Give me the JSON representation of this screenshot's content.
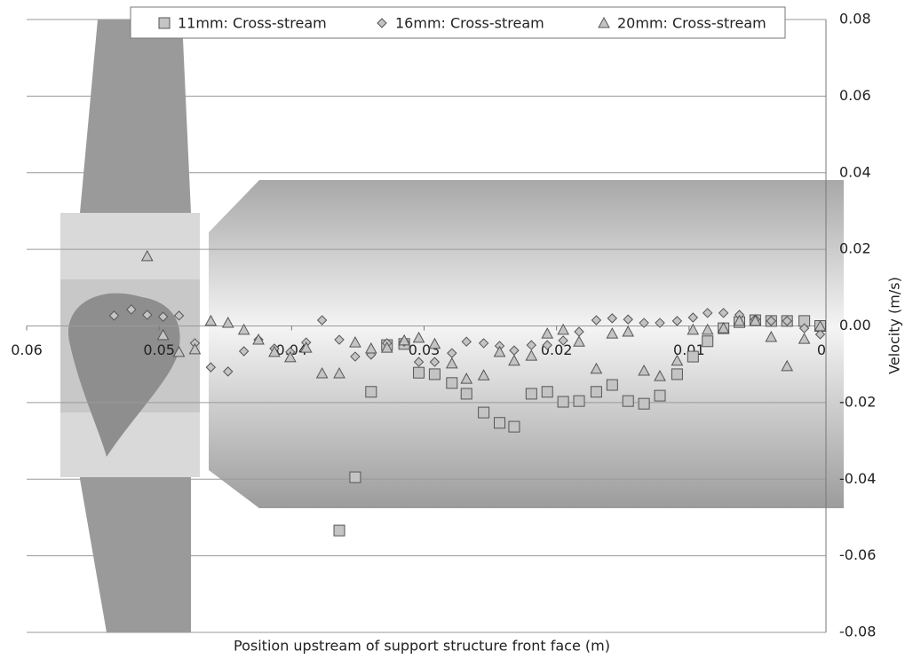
{
  "chart_data": {
    "type": "scatter",
    "x_label": "Position upstream of support structure front face (m)",
    "y_label": "Velocity (m/s)",
    "xlim": [
      0.06,
      0
    ],
    "xticks": [
      0.06,
      0.05,
      0.04,
      0.03,
      0.02,
      0.01,
      0
    ],
    "ylim": [
      -0.08,
      0.08
    ],
    "yticks": [
      0.08,
      0.06,
      0.04,
      0.02,
      {
        "value": 0,
        "label": "0.00"
      },
      -0.02,
      -0.04,
      -0.06,
      -0.08
    ],
    "grid": true,
    "legend": "top",
    "series": [
      {
        "name": "11mm: Cross-stream",
        "marker": "square",
        "color": "#c4c4c4",
        "x": [
          0.0364,
          0.0352,
          0.034,
          0.0328,
          0.0315,
          0.0304,
          0.0292,
          0.0279,
          0.0268,
          0.0255,
          0.0243,
          0.0232,
          0.0219,
          0.0207,
          0.0195,
          0.0183,
          0.017,
          0.0158,
          0.0146,
          0.0134,
          0.0122,
          0.0109,
          0.0097,
          0.0086,
          0.0074,
          0.0062,
          0.005,
          0.0038,
          0.0026,
          0.0013,
          0.0001
        ],
        "values": [
          -0.0534,
          -0.0395,
          -0.0172,
          -0.005,
          -0.0047,
          -0.0122,
          -0.0126,
          -0.0149,
          -0.0177,
          -0.0226,
          -0.0253,
          -0.0263,
          -0.0177,
          -0.0172,
          -0.0198,
          -0.0196,
          -0.0172,
          -0.0154,
          -0.0196,
          -0.0203,
          -0.0182,
          -0.0126,
          -0.008,
          -0.004,
          -0.0006,
          0.001,
          0.0015,
          0.0013,
          0.0013,
          0.0013,
          0
        ]
      },
      {
        "name": "16mm: Cross-stream",
        "marker": "diamond",
        "color": "#c4c4c4",
        "x": [
          0.0534,
          0.0521,
          0.0509,
          0.0497,
          0.0485,
          0.0473,
          0.0461,
          0.0448,
          0.0436,
          0.0425,
          0.0413,
          0.0401,
          0.0389,
          0.0377,
          0.0364,
          0.0352,
          0.034,
          0.0328,
          0.0315,
          0.0304,
          0.0292,
          0.0279,
          0.0268,
          0.0255,
          0.0243,
          0.0232,
          0.0219,
          0.0207,
          0.0195,
          0.0183,
          0.017,
          0.0158,
          0.0146,
          0.0134,
          0.0122,
          0.0109,
          0.0097,
          0.0086,
          0.0074,
          0.0062,
          0.005,
          0.0038,
          0.0026,
          0.0013,
          0.0001
        ],
        "values": [
          0.0027,
          0.0043,
          0.0029,
          0.0024,
          0.0027,
          -0.0045,
          -0.0108,
          -0.0119,
          -0.0066,
          -0.0036,
          -0.0059,
          -0.0068,
          -0.0043,
          0.0015,
          -0.0036,
          -0.008,
          -0.0075,
          -0.0045,
          -0.0041,
          -0.0094,
          -0.0094,
          -0.0071,
          -0.0041,
          -0.0045,
          -0.0052,
          -0.0064,
          -0.005,
          -0.005,
          -0.0038,
          -0.0015,
          0.0015,
          0.002,
          0.0017,
          0.0008,
          0.0008,
          0.0013,
          0.0022,
          0.0034,
          0.0034,
          0.0029,
          0.0017,
          0.0013,
          0.0013,
          -0.0006,
          -0.0022
        ]
      },
      {
        "name": "20mm: Cross-stream",
        "marker": "triangle",
        "color": "#c4c4c4",
        "x": [
          0.0509,
          0.0497,
          0.0485,
          0.0473,
          0.0461,
          0.0448,
          0.0436,
          0.0425,
          0.0413,
          0.0401,
          0.0389,
          0.0377,
          0.0364,
          0.0352,
          0.034,
          0.0328,
          0.0315,
          0.0304,
          0.0292,
          0.0279,
          0.0268,
          0.0255,
          0.0243,
          0.0232,
          0.0219,
          0.0207,
          0.0195,
          0.0183,
          0.017,
          0.0158,
          0.0146,
          0.0134,
          0.0122,
          0.0109,
          0.0097,
          0.0086,
          0.0074,
          0.0062,
          0.005,
          0.0038,
          0.0026,
          0.0013,
          0.0001
        ],
        "values": [
          0.0182,
          -0.0024,
          -0.0068,
          -0.0061,
          0.0013,
          0.0008,
          -0.001,
          -0.0036,
          -0.0068,
          -0.0082,
          -0.0057,
          -0.0124,
          -0.0124,
          -0.0043,
          -0.0059,
          -0.0057,
          -0.0038,
          -0.0031,
          -0.0047,
          -0.0098,
          -0.0138,
          -0.0129,
          -0.0068,
          -0.0091,
          -0.0078,
          -0.002,
          -0.001,
          -0.0041,
          -0.0112,
          -0.002,
          -0.0015,
          -0.0117,
          -0.0131,
          -0.0091,
          -0.001,
          -0.001,
          -0.0006,
          0.0013,
          0.0013,
          -0.0029,
          -0.0105,
          -0.0034,
          -0.0001
        ]
      }
    ]
  }
}
